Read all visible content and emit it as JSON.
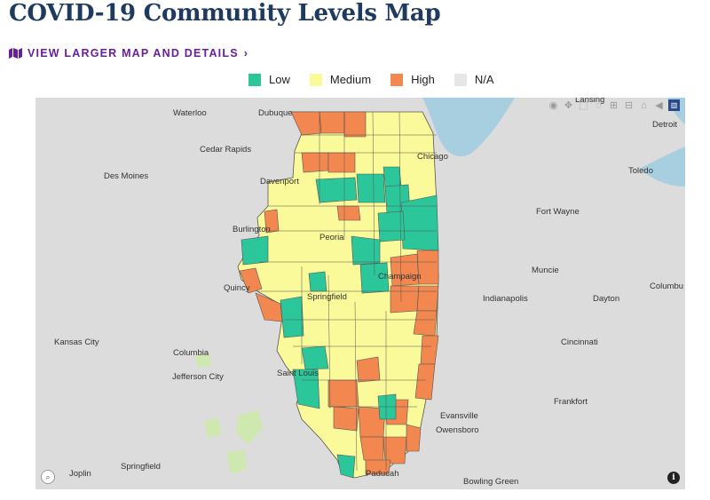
{
  "page": {
    "title": "COVID-19 Community Levels Map",
    "view_link": "VIEW LARGER MAP AND DETAILS"
  },
  "legend": [
    {
      "label": "Low",
      "color": "#2bc79a"
    },
    {
      "label": "Medium",
      "color": "#fafa9a"
    },
    {
      "label": "High",
      "color": "#f2874f"
    },
    {
      "label": "N/A",
      "color": "#e6e6e6"
    }
  ],
  "map_labels": {
    "lansing": "Lansing",
    "waterloo": "Waterloo",
    "dubuque": "Dubuque",
    "detroit": "Detroit",
    "cedar_rapids": "Cedar Rapids",
    "chicago": "Chicago",
    "des_moines": "Des Moines",
    "davenport": "Davenport",
    "toledo": "Toledo",
    "fort_wayne": "Fort Wayne",
    "burlington": "Burlington",
    "peoria": "Peoria",
    "muncie": "Muncie",
    "quincy": "Quincy",
    "champaign": "Champaign",
    "columbu": "Columbu",
    "springfield_il": "Springfield",
    "indianapolis": "Indianapolis",
    "dayton": "Dayton",
    "kansas_city": "Kansas City",
    "columbia": "Columbia",
    "cincinnati": "Cincinnati",
    "jefferson_city": "Jefferson City",
    "saint_louis": "Saint Louis",
    "frankfort": "Frankfort",
    "evansville": "Evansville",
    "owensboro": "Owensboro",
    "joplin": "Joplin",
    "springfield_mo": "Springfield",
    "paducah": "Paducah",
    "bowling_green": "Bowling Green"
  },
  "colors": {
    "title": "#1f3a5f",
    "link": "#6b1e9b",
    "water": "#a8cfe0",
    "land": "#dcdcdc",
    "county_border": "#555555"
  },
  "icons": {
    "map_link_icon": "map-icon",
    "chevron": "chevron-right-icon",
    "modebar": [
      "camera-icon",
      "pan-icon",
      "box-select-icon",
      "lasso-icon",
      "zoom-in-icon",
      "zoom-out-icon",
      "home-icon",
      "back-icon",
      "plotly-logo-icon"
    ],
    "zoom": "magnify-icon",
    "info": "info-icon"
  }
}
